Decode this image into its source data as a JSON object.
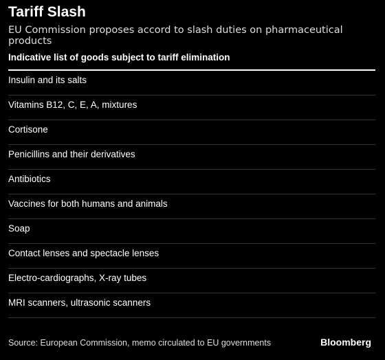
{
  "header": {
    "title": "Tariff Slash",
    "subtitle": "EU Commission proposes accord to slash duties on pharmaceutical products"
  },
  "table": {
    "header": "Indicative list of goods subject to tariff elimination",
    "rows": [
      "Insulin and its salts",
      "Vitamins B12, C, E, A, mixtures",
      "Cortisone",
      "Penicillins and their derivatives",
      "Antibiotics",
      "Vaccines for both humans and animals",
      "Soap",
      "Contact lenses and spectacle lenses",
      "Electro-cardiographs, X-ray tubes",
      "MRI scanners, ultrasonic scanners"
    ]
  },
  "footer": {
    "source": "Source: European Commission, memo circulated to EU governments",
    "brand": "Bloomberg"
  }
}
